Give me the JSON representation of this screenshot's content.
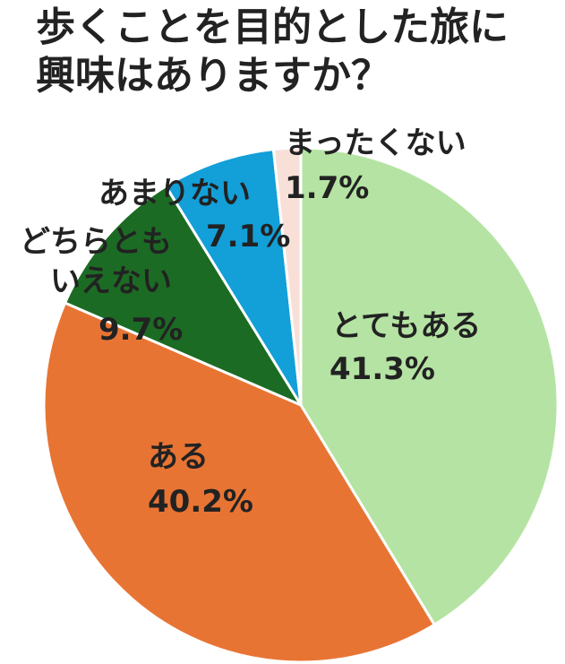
{
  "chart_data": {
    "type": "pie",
    "title": "歩くことを目的とした旅に興味はありますか？",
    "categories": [
      "とてもある",
      "ある",
      "どちらともいえない",
      "あまりない",
      "まったくない"
    ],
    "values": [
      41.3,
      40.2,
      9.7,
      7.1,
      1.7
    ],
    "value_labels": [
      "41.3%",
      "40.2%",
      "9.7%",
      "7.1%",
      "1.7%"
    ],
    "colors": [
      "#b5e3a3",
      "#e87434",
      "#1c6b24",
      "#139fd8",
      "#f8e0d8"
    ]
  }
}
